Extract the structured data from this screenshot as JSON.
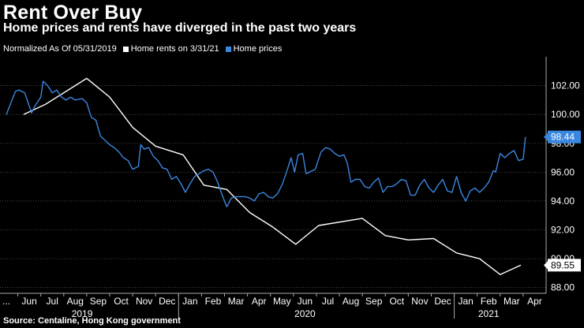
{
  "title": "Rent Over Buy",
  "subtitle": "Home prices and rents have diverged in the past two years",
  "legend": {
    "note": "Normalized As Of 05/31/2019",
    "series": [
      {
        "label": "Home rents on 3/31/21",
        "color": "#ffffff"
      },
      {
        "label": "Home prices",
        "color": "#3a87e0"
      }
    ]
  },
  "source": "Source: Centaline, Hong Kong government",
  "chart_data": {
    "type": "line",
    "title": "Rent Over Buy",
    "ylim": [
      87.6,
      104.0
    ],
    "y_ticks": [
      "102.00",
      "100.00",
      "98.00",
      "96.00",
      "94.00",
      "92.00",
      "90.00",
      "88.00"
    ],
    "x_months": [
      "...",
      "Jun",
      "Jul",
      "Aug",
      "Sep",
      "Oct",
      "Nov",
      "Dec",
      "Jan",
      "Feb",
      "Mar",
      "Apr",
      "May",
      "Jun",
      "Jul",
      "Aug",
      "Sep",
      "Oct",
      "Nov",
      "Dec",
      "Jan",
      "Feb",
      "Mar",
      "Apr"
    ],
    "x_years": [
      "2019",
      "2020",
      "2021"
    ],
    "series": [
      {
        "name": "Home rents on 3/31/21",
        "color": "#ffffff",
        "end_label": "89.55",
        "points": [
          [
            0.75,
            100.0
          ],
          [
            1.7,
            100.7
          ],
          [
            3.5,
            102.5
          ],
          [
            4.5,
            101.2
          ],
          [
            5.5,
            99.1
          ],
          [
            6.5,
            97.8
          ],
          [
            7.7,
            97.2
          ],
          [
            8.6,
            95.1
          ],
          [
            9.6,
            94.8
          ],
          [
            10.6,
            93.2
          ],
          [
            11.6,
            92.2
          ],
          [
            12.6,
            91.0
          ],
          [
            13.6,
            92.3
          ],
          [
            15.5,
            92.8
          ],
          [
            16.5,
            91.6
          ],
          [
            17.5,
            91.3
          ],
          [
            18.6,
            91.4
          ],
          [
            19.6,
            90.4
          ],
          [
            20.6,
            90.0
          ],
          [
            21.5,
            88.9
          ],
          [
            22.4,
            89.55
          ]
        ]
      },
      {
        "name": "Home prices",
        "color": "#3a87e0",
        "end_label": "98.44",
        "points": [
          [
            0.0,
            100.0
          ],
          [
            0.4,
            101.6
          ],
          [
            0.55,
            101.7
          ],
          [
            0.8,
            101.5
          ],
          [
            1.1,
            100.1
          ],
          [
            1.25,
            100.6
          ],
          [
            1.5,
            101.2
          ],
          [
            1.6,
            102.3
          ],
          [
            1.8,
            102.0
          ],
          [
            2.0,
            101.5
          ],
          [
            2.2,
            101.7
          ],
          [
            2.4,
            101.2
          ],
          [
            2.6,
            101.0
          ],
          [
            2.8,
            101.2
          ],
          [
            3.0,
            101.0
          ],
          [
            3.3,
            101.1
          ],
          [
            3.5,
            100.8
          ],
          [
            3.7,
            99.8
          ],
          [
            3.9,
            99.6
          ],
          [
            4.1,
            98.5
          ],
          [
            4.3,
            98.2
          ],
          [
            4.5,
            97.9
          ],
          [
            4.7,
            97.7
          ],
          [
            4.9,
            97.4
          ],
          [
            5.1,
            97.0
          ],
          [
            5.3,
            96.8
          ],
          [
            5.5,
            96.2
          ],
          [
            5.75,
            96.4
          ],
          [
            5.85,
            97.9
          ],
          [
            6.0,
            97.6
          ],
          [
            6.2,
            97.7
          ],
          [
            6.4,
            97.1
          ],
          [
            6.6,
            96.8
          ],
          [
            6.8,
            96.3
          ],
          [
            7.0,
            96.2
          ],
          [
            7.2,
            95.5
          ],
          [
            7.4,
            95.7
          ],
          [
            7.6,
            95.2
          ],
          [
            7.8,
            94.6
          ],
          [
            8.0,
            95.2
          ],
          [
            8.2,
            95.7
          ],
          [
            8.4,
            95.9
          ],
          [
            8.6,
            96.1
          ],
          [
            8.8,
            96.2
          ],
          [
            9.0,
            96.0
          ],
          [
            9.2,
            95.3
          ],
          [
            9.4,
            94.4
          ],
          [
            9.6,
            93.6
          ],
          [
            9.8,
            94.2
          ],
          [
            10.0,
            94.3
          ],
          [
            10.2,
            94.3
          ],
          [
            10.4,
            94.3
          ],
          [
            10.6,
            94.2
          ],
          [
            10.8,
            94.0
          ],
          [
            11.0,
            94.5
          ],
          [
            11.2,
            94.6
          ],
          [
            11.4,
            94.3
          ],
          [
            11.6,
            94.2
          ],
          [
            11.8,
            94.5
          ],
          [
            12.0,
            95.1
          ],
          [
            12.2,
            96.0
          ],
          [
            12.4,
            97.0
          ],
          [
            12.55,
            96.0
          ],
          [
            12.7,
            97.2
          ],
          [
            12.9,
            97.3
          ],
          [
            13.05,
            95.9
          ],
          [
            13.2,
            96.0
          ],
          [
            13.45,
            96.2
          ],
          [
            13.7,
            97.4
          ],
          [
            13.9,
            97.7
          ],
          [
            14.1,
            97.6
          ],
          [
            14.3,
            97.3
          ],
          [
            14.5,
            97.1
          ],
          [
            14.7,
            97.2
          ],
          [
            14.85,
            96.6
          ],
          [
            15.0,
            95.3
          ],
          [
            15.2,
            95.5
          ],
          [
            15.4,
            95.5
          ],
          [
            15.6,
            95.0
          ],
          [
            15.8,
            94.9
          ],
          [
            16.0,
            95.3
          ],
          [
            16.2,
            95.6
          ],
          [
            16.4,
            94.6
          ],
          [
            16.6,
            95.0
          ],
          [
            16.8,
            95.0
          ],
          [
            17.0,
            95.2
          ],
          [
            17.2,
            95.5
          ],
          [
            17.4,
            95.4
          ],
          [
            17.6,
            94.4
          ],
          [
            17.8,
            94.4
          ],
          [
            18.0,
            95.1
          ],
          [
            18.2,
            95.5
          ],
          [
            18.4,
            94.9
          ],
          [
            18.6,
            94.6
          ],
          [
            18.8,
            95.1
          ],
          [
            19.0,
            95.5
          ],
          [
            19.2,
            94.7
          ],
          [
            19.4,
            94.6
          ],
          [
            19.6,
            95.7
          ],
          [
            19.8,
            94.6
          ],
          [
            20.0,
            94.0
          ],
          [
            20.2,
            94.7
          ],
          [
            20.4,
            94.9
          ],
          [
            20.6,
            94.6
          ],
          [
            20.8,
            94.9
          ],
          [
            21.0,
            95.3
          ],
          [
            21.2,
            96.1
          ],
          [
            21.3,
            96.0
          ],
          [
            21.5,
            97.3
          ],
          [
            21.7,
            97.0
          ],
          [
            21.9,
            97.3
          ],
          [
            22.1,
            97.5
          ],
          [
            22.3,
            96.8
          ],
          [
            22.5,
            96.9
          ],
          [
            22.6,
            98.44
          ]
        ]
      }
    ]
  }
}
